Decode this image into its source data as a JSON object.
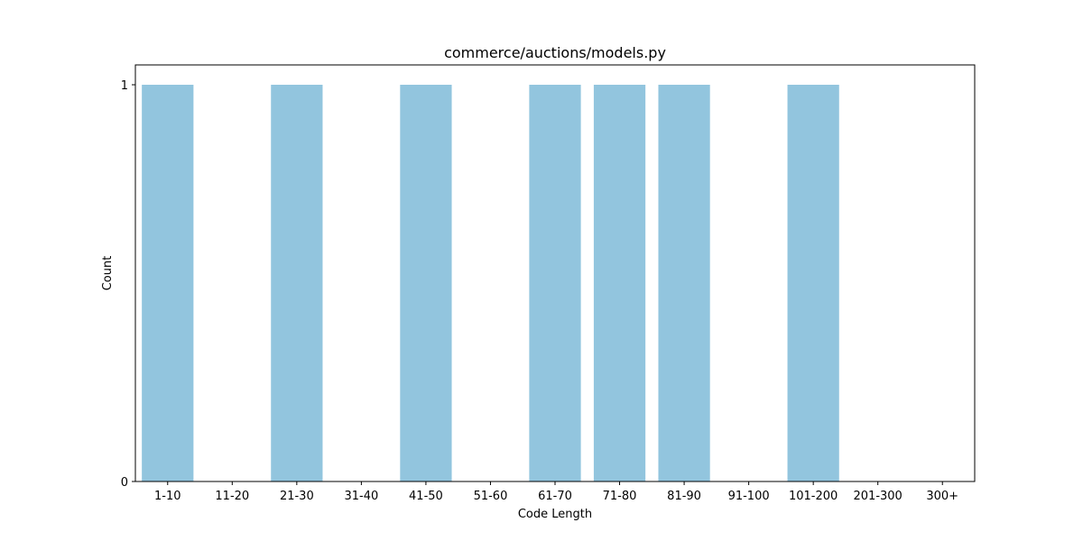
{
  "chart_data": {
    "type": "bar",
    "title": "commerce/auctions/models.py",
    "xlabel": "Code Length",
    "ylabel": "Count",
    "categories": [
      "1-10",
      "11-20",
      "21-30",
      "31-40",
      "41-50",
      "51-60",
      "61-70",
      "71-80",
      "81-90",
      "91-100",
      "101-200",
      "201-300",
      "300+"
    ],
    "values": [
      1,
      0,
      1,
      0,
      1,
      0,
      1,
      1,
      1,
      0,
      1,
      0,
      0
    ],
    "ylim": [
      0,
      1.05
    ],
    "yticks": [
      0,
      1
    ],
    "grid": false,
    "bar_color": "#92c5de"
  }
}
